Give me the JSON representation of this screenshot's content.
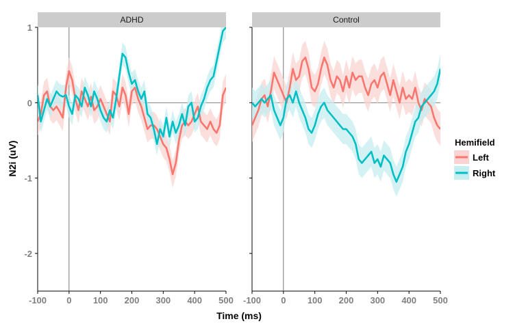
{
  "chart_data": {
    "type": "line",
    "xlabel": "Time (ms)",
    "ylabel": "N2i (uV)",
    "xlim": [
      -100,
      500
    ],
    "ylim": [
      -2.5,
      1
    ],
    "x_ticks": [
      -100,
      0,
      100,
      200,
      300,
      400,
      500
    ],
    "y_ticks": [
      -2,
      -1,
      0,
      1
    ],
    "x_tick_labels": [
      "-100",
      "0",
      "100",
      "200",
      "300",
      "400",
      "500"
    ],
    "y_tick_labels": [
      "-2",
      "-1",
      "0",
      "1"
    ],
    "grid": false,
    "hlines": [
      0
    ],
    "vlines": [
      0
    ],
    "legend": {
      "title": "Hemifield",
      "position": "right",
      "entries": [
        {
          "label": "Left",
          "color": "#F8766D",
          "band_color": "#FAD4D2"
        },
        {
          "label": "Right",
          "color": "#00BFC4",
          "band_color": "#C5EEF0"
        }
      ]
    },
    "panels": [
      {
        "title": "ADHD",
        "x": [
          -100,
          -90,
          -80,
          -70,
          -60,
          -50,
          -40,
          -30,
          -20,
          -10,
          0,
          10,
          20,
          30,
          40,
          50,
          60,
          70,
          80,
          90,
          100,
          110,
          120,
          130,
          140,
          150,
          160,
          170,
          180,
          190,
          200,
          210,
          220,
          230,
          240,
          250,
          260,
          270,
          280,
          290,
          300,
          310,
          320,
          330,
          340,
          350,
          360,
          370,
          380,
          390,
          400,
          410,
          420,
          430,
          440,
          450,
          460,
          470,
          480,
          490,
          500
        ],
        "series": [
          {
            "name": "Left",
            "values": [
              -0.25,
              -0.15,
              0.1,
              0.15,
              -0.05,
              -0.1,
              -0.05,
              -0.12,
              -0.2,
              0.2,
              0.42,
              0.3,
              0.05,
              -0.1,
              0.15,
              0.05,
              -0.05,
              0.08,
              -0.1,
              -0.05,
              0.05,
              -0.05,
              -0.15,
              -0.25,
              0.15,
              0.1,
              -0.05,
              0.2,
              0.1,
              -0.15,
              0.15,
              0.2,
              0.05,
              -0.05,
              -0.2,
              -0.35,
              -0.3,
              -0.3,
              -0.35,
              -0.45,
              -0.55,
              -0.6,
              -0.75,
              -0.95,
              -0.8,
              -0.5,
              -0.3,
              -0.25,
              -0.3,
              -0.25,
              -0.15,
              -0.05,
              -0.25,
              -0.3,
              -0.35,
              -0.25,
              -0.35,
              -0.4,
              -0.3,
              0.1,
              0.2
            ],
            "band": 0.18
          },
          {
            "name": "Right",
            "values": [
              0.1,
              -0.25,
              -0.1,
              0.05,
              -0.05,
              0.05,
              0.15,
              0.1,
              0.08,
              0.1,
              -0.05,
              -0.15,
              0.1,
              0.05,
              -0.05,
              0.2,
              0.1,
              -0.05,
              0.15,
              0.05,
              -0.1,
              -0.2,
              -0.25,
              -0.1,
              -0.2,
              0.05,
              0.35,
              0.65,
              0.6,
              0.4,
              0.25,
              0.3,
              0.15,
              0.05,
              0.15,
              -0.15,
              -0.2,
              -0.35,
              -0.55,
              -0.35,
              -0.45,
              -0.2,
              -0.45,
              -0.25,
              -0.4,
              -0.3,
              -0.15,
              -0.3,
              -0.05,
              0.0,
              -0.25,
              -0.2,
              -0.05,
              0.05,
              0.2,
              0.3,
              0.35,
              0.55,
              0.75,
              0.95,
              1.0
            ],
            "band": 0.15
          }
        ]
      },
      {
        "title": "Control",
        "x": [
          -100,
          -90,
          -80,
          -70,
          -60,
          -50,
          -40,
          -30,
          -20,
          -10,
          0,
          10,
          20,
          30,
          40,
          50,
          60,
          70,
          80,
          90,
          100,
          110,
          120,
          130,
          140,
          150,
          160,
          170,
          180,
          190,
          200,
          210,
          220,
          230,
          240,
          250,
          260,
          270,
          280,
          290,
          300,
          310,
          320,
          330,
          340,
          350,
          360,
          370,
          380,
          390,
          400,
          410,
          420,
          430,
          440,
          450,
          460,
          470,
          480,
          490,
          500
        ],
        "series": [
          {
            "name": "Left",
            "values": [
              -0.3,
              -0.2,
              -0.1,
              0.05,
              0.1,
              -0.05,
              0.15,
              0.4,
              0.3,
              0.2,
              0.1,
              0.0,
              0.2,
              0.45,
              0.3,
              0.35,
              0.55,
              0.6,
              0.45,
              0.2,
              0.15,
              0.25,
              0.45,
              0.6,
              0.5,
              0.3,
              0.2,
              0.35,
              0.3,
              0.15,
              0.35,
              0.2,
              0.4,
              0.3,
              0.35,
              0.35,
              0.2,
              0.1,
              0.25,
              0.3,
              0.2,
              0.35,
              0.4,
              0.25,
              0.1,
              0.3,
              0.15,
              0.0,
              0.2,
              0.05,
              0.1,
              0.05,
              0.2,
              0.0,
              -0.1,
              0.05,
              0.0,
              -0.05,
              -0.2,
              -0.3,
              -0.35
            ],
            "band": 0.22
          },
          {
            "name": "Right",
            "values": [
              0.0,
              -0.05,
              0.0,
              0.05,
              0.0,
              0.05,
              0.1,
              -0.1,
              -0.2,
              -0.3,
              -0.2,
              0.05,
              0.1,
              0.0,
              0.15,
              0.0,
              -0.1,
              -0.2,
              -0.35,
              -0.4,
              -0.3,
              -0.15,
              -0.05,
              0.0,
              -0.1,
              -0.15,
              -0.2,
              -0.25,
              -0.3,
              -0.35,
              -0.35,
              -0.4,
              -0.45,
              -0.55,
              -0.75,
              -0.8,
              -0.75,
              -0.7,
              -0.65,
              -0.8,
              -0.75,
              -0.85,
              -0.7,
              -0.75,
              -0.8,
              -0.95,
              -1.05,
              -0.95,
              -0.85,
              -0.65,
              -0.55,
              -0.4,
              -0.25,
              -0.2,
              -0.05,
              0.0,
              0.05,
              0.1,
              0.15,
              0.25,
              0.45
            ],
            "band": 0.2
          }
        ]
      }
    ]
  }
}
